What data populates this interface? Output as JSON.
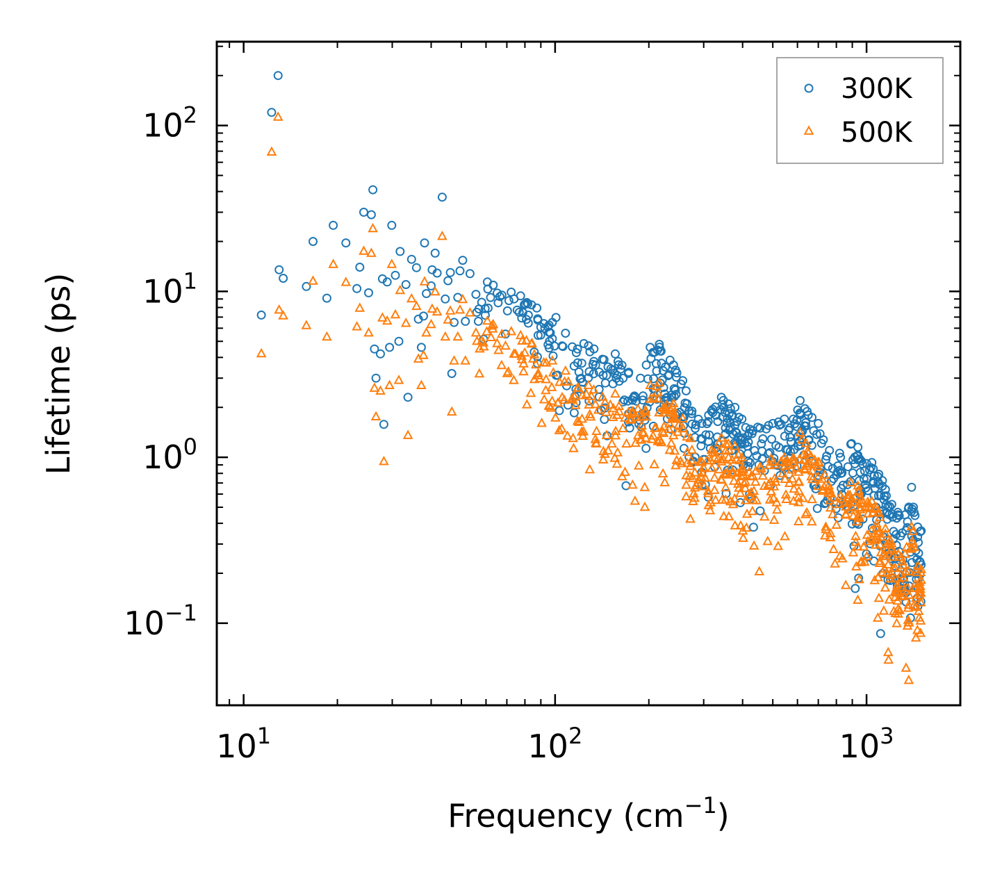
{
  "chart_data": {
    "type": "scatter",
    "title": "",
    "xlabel": "Frequency (cm",
    "xlabel_sup": "−1",
    "xlabel_suffix": ")",
    "ylabel": "Lifetime (ps)",
    "xscale": "log",
    "yscale": "log",
    "xlim": [
      8.2,
      2000
    ],
    "ylim": [
      0.032,
      320
    ],
    "legend_position": "top-right",
    "x_ticks": [
      {
        "value": 10,
        "base": "10",
        "exp": "1"
      },
      {
        "value": 100,
        "base": "10",
        "exp": "2"
      },
      {
        "value": 1000,
        "base": "10",
        "exp": "3"
      }
    ],
    "y_ticks": [
      {
        "value": 0.1,
        "base": "10",
        "exp": "−1"
      },
      {
        "value": 1,
        "base": "10",
        "exp": "0"
      },
      {
        "value": 10,
        "base": "10",
        "exp": "1"
      },
      {
        "value": 100,
        "base": "10",
        "exp": "2"
      }
    ],
    "series": [
      {
        "name": "300K",
        "marker": "circle",
        "color": "#1f77b4",
        "points": [
          [
            11.4,
            7.2
          ],
          [
            12.3,
            120
          ],
          [
            12.9,
            200
          ],
          [
            13.0,
            13.5
          ],
          [
            13.4,
            12
          ],
          [
            15.9,
            10.7
          ],
          [
            16.7,
            20
          ],
          [
            18.5,
            9.1
          ],
          [
            19.4,
            25
          ],
          [
            21.3,
            19.6
          ],
          [
            23.1,
            10.4
          ],
          [
            23.6,
            14
          ],
          [
            24.3,
            30
          ],
          [
            25.2,
            9.8
          ],
          [
            25.7,
            29
          ],
          [
            26.0,
            41
          ],
          [
            26.3,
            4.5
          ],
          [
            26.6,
            3.0
          ],
          [
            27.5,
            4.2
          ],
          [
            27.9,
            11.9
          ],
          [
            28.2,
            1.58
          ],
          [
            28.9,
            11.4
          ],
          [
            29.4,
            4.6
          ],
          [
            29.9,
            25
          ],
          [
            30.7,
            12.5
          ],
          [
            31.5,
            5.0
          ],
          [
            31.8,
            17.4
          ],
          [
            33.2,
            11
          ],
          [
            33.7,
            2.3
          ],
          [
            34.6,
            15.6
          ],
          [
            35.9,
            13.9
          ],
          [
            36.4,
            6.8
          ],
          [
            37.2,
            4.6
          ],
          [
            37.8,
            7.1
          ],
          [
            38.1,
            19.6
          ],
          [
            38.6,
            9.7
          ],
          [
            40.0,
            10.8
          ],
          [
            40.3,
            13.5
          ],
          [
            41.2,
            17
          ],
          [
            41.8,
            12.9
          ],
          [
            43.4,
            37
          ],
          [
            44.4,
            9.0
          ],
          [
            45.3,
            11.6
          ],
          [
            46.1,
            13
          ],
          [
            46.6,
            3.2
          ],
          [
            47.4,
            6.5
          ],
          [
            48.7,
            9.2
          ],
          [
            49.5,
            13.3
          ],
          [
            50.5,
            15.4
          ],
          [
            51.5,
            6.6
          ],
          [
            53.3,
            12.8
          ],
          [
            55.7,
            9.6
          ],
          [
            58.1,
            8.6
          ],
          [
            60.6,
            11.4
          ],
          [
            63.3,
            10.9
          ],
          [
            67.5,
            9.5
          ],
          [
            72.3,
            9.9
          ],
          [
            77.5,
            9.4
          ],
          [
            84.0,
            8.3
          ],
          [
            92.0,
            6.4
          ],
          [
            98.0,
            6.5
          ],
          [
            108,
            5.6
          ],
          [
            118,
            4.5
          ],
          [
            128,
            4.7
          ],
          [
            142,
            3.9
          ],
          [
            156,
            4.2
          ],
          [
            172,
            3.2
          ],
          [
            188,
            3.0
          ],
          [
            202,
            4.6
          ],
          [
            216,
            4.8
          ],
          [
            226,
            3.5
          ],
          [
            240,
            3.6
          ],
          [
            257,
            2.9
          ],
          [
            275,
            1.9
          ],
          [
            296,
            1.6
          ],
          [
            318,
            1.9
          ],
          [
            342,
            2.3
          ],
          [
            360,
            2.1
          ],
          [
            378,
            2.0
          ],
          [
            398,
            1.7
          ],
          [
            420,
            1.4
          ],
          [
            455,
            1.5
          ],
          [
            500,
            1.6
          ],
          [
            545,
            1.7
          ],
          [
            582,
            1.7
          ],
          [
            612,
            2.2
          ],
          [
            650,
            1.8
          ],
          [
            700,
            1.6
          ],
          [
            760,
            1.1
          ],
          [
            825,
            1.0
          ],
          [
            890,
            1.2
          ],
          [
            938,
            1.15
          ],
          [
            962,
            0.95
          ],
          [
            1040,
            0.93
          ],
          [
            1095,
            0.79
          ],
          [
            1150,
            0.64
          ],
          [
            1205,
            0.52
          ],
          [
            1262,
            0.45
          ],
          [
            1330,
            0.45
          ],
          [
            1395,
            0.66
          ],
          [
            1460,
            0.38
          ],
          [
            1498,
            0.36
          ]
        ]
      },
      {
        "name": "500K",
        "marker": "triangle",
        "color": "#ff7f0e",
        "points": [
          [
            11.4,
            4.2
          ],
          [
            12.3,
            69
          ],
          [
            12.9,
            112
          ],
          [
            13.0,
            7.7
          ],
          [
            13.4,
            7.1
          ],
          [
            15.9,
            6.2
          ],
          [
            16.7,
            11.5
          ],
          [
            18.5,
            5.3
          ],
          [
            19.4,
            14.5
          ],
          [
            21.3,
            11.3
          ],
          [
            23.1,
            6.1
          ],
          [
            23.6,
            7.9
          ],
          [
            24.3,
            17.4
          ],
          [
            25.2,
            5.6
          ],
          [
            25.7,
            16.9
          ],
          [
            26.0,
            23.8
          ],
          [
            26.3,
            2.6
          ],
          [
            26.6,
            1.75
          ],
          [
            27.5,
            2.5
          ],
          [
            27.9,
            6.9
          ],
          [
            28.2,
            0.94
          ],
          [
            28.9,
            6.6
          ],
          [
            29.4,
            2.7
          ],
          [
            29.9,
            14.5
          ],
          [
            30.7,
            7.2
          ],
          [
            31.5,
            2.9
          ],
          [
            31.8,
            10.1
          ],
          [
            33.2,
            6.4
          ],
          [
            33.7,
            1.35
          ],
          [
            34.6,
            9.0
          ],
          [
            35.9,
            8.1
          ],
          [
            36.4,
            3.9
          ],
          [
            37.2,
            2.7
          ],
          [
            37.8,
            4.1
          ],
          [
            38.1,
            11.4
          ],
          [
            38.6,
            5.6
          ],
          [
            40.0,
            6.3
          ],
          [
            40.3,
            7.8
          ],
          [
            41.2,
            9.9
          ],
          [
            41.8,
            7.5
          ],
          [
            43.4,
            21.4
          ],
          [
            44.4,
            5.3
          ],
          [
            45.3,
            6.7
          ],
          [
            46.1,
            7.6
          ],
          [
            46.6,
            1.87
          ],
          [
            47.4,
            3.8
          ],
          [
            48.7,
            5.3
          ],
          [
            49.5,
            7.7
          ],
          [
            50.5,
            8.9
          ],
          [
            51.5,
            3.8
          ],
          [
            53.3,
            7.4
          ],
          [
            55.7,
            5.6
          ],
          [
            58.1,
            5.0
          ],
          [
            60.6,
            6.6
          ],
          [
            63.3,
            6.3
          ],
          [
            67.5,
            5.5
          ],
          [
            72.3,
            5.7
          ],
          [
            77.5,
            5.4
          ],
          [
            84.0,
            4.8
          ],
          [
            92.0,
            3.7
          ],
          [
            98.0,
            3.8
          ],
          [
            108,
            3.3
          ],
          [
            118,
            2.6
          ],
          [
            128,
            2.7
          ],
          [
            142,
            2.3
          ],
          [
            156,
            2.4
          ],
          [
            172,
            1.86
          ],
          [
            188,
            1.74
          ],
          [
            202,
            2.7
          ],
          [
            216,
            2.8
          ],
          [
            226,
            2.0
          ],
          [
            240,
            2.1
          ],
          [
            257,
            1.7
          ],
          [
            275,
            1.1
          ],
          [
            296,
            0.93
          ],
          [
            318,
            1.1
          ],
          [
            342,
            1.3
          ],
          [
            360,
            1.2
          ],
          [
            378,
            1.16
          ],
          [
            398,
            0.99
          ],
          [
            420,
            0.81
          ],
          [
            455,
            0.87
          ],
          [
            500,
            0.93
          ],
          [
            545,
            0.99
          ],
          [
            582,
            0.99
          ],
          [
            612,
            1.4
          ],
          [
            650,
            1.05
          ],
          [
            700,
            0.93
          ],
          [
            760,
            0.64
          ],
          [
            825,
            0.58
          ],
          [
            890,
            0.7
          ],
          [
            938,
            0.67
          ],
          [
            962,
            0.55
          ],
          [
            1040,
            0.54
          ],
          [
            1095,
            0.46
          ],
          [
            1150,
            0.37
          ],
          [
            1205,
            0.3
          ],
          [
            1262,
            0.26
          ],
          [
            1330,
            0.26
          ],
          [
            1395,
            0.38
          ],
          [
            1460,
            0.22
          ],
          [
            1498,
            0.21
          ]
        ]
      }
    ]
  }
}
